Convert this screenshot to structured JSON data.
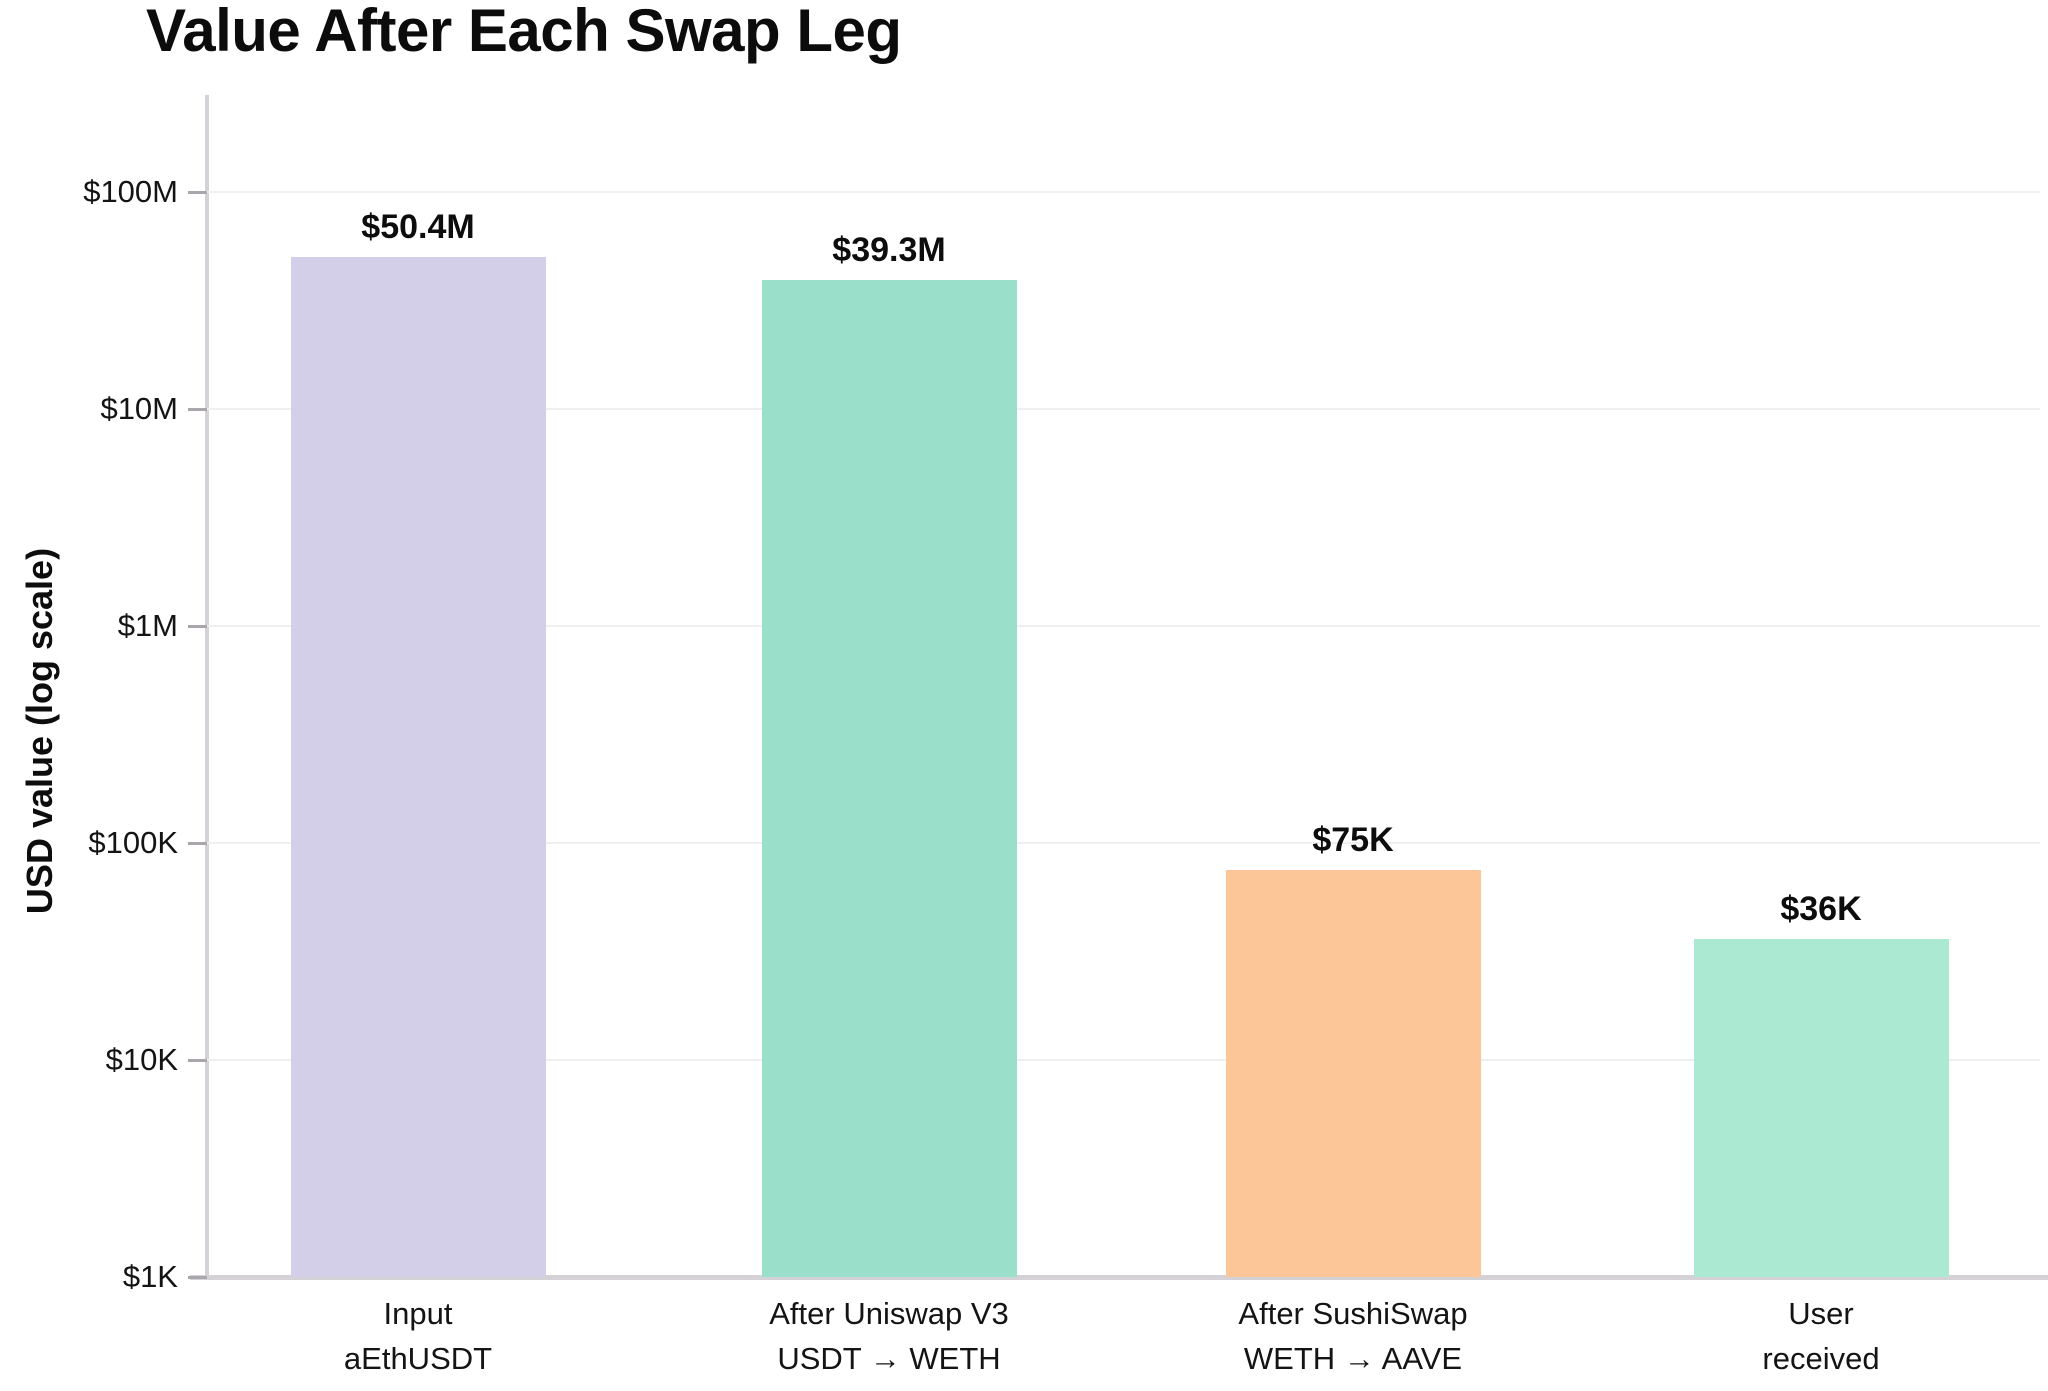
{
  "chart_data": {
    "type": "bar",
    "title": "Value After Each Swap Leg",
    "ylabel": "USD value (log scale)",
    "xlabel": "",
    "log_scale": true,
    "ylim": [
      1000,
      100000000
    ],
    "grid": "horizontal",
    "legend": "none",
    "categories": [
      [
        "Input",
        "aEthUSDT"
      ],
      [
        "After Uniswap V3",
        "USDT → WETH"
      ],
      [
        "After SushiSwap",
        "WETH → AAVE"
      ],
      [
        "User",
        "received"
      ]
    ],
    "values": [
      50400000,
      39300000,
      75000,
      36000
    ],
    "value_labels": [
      "$50.4M",
      "$39.3M",
      "$75K",
      "$36K"
    ],
    "bar_colors": [
      "#d3cfe9",
      "#99dfc9",
      "#fdc699",
      "#ace9d3"
    ],
    "yticks": [
      {
        "label": "$1K",
        "value": 1000
      },
      {
        "label": "$10K",
        "value": 10000
      },
      {
        "label": "$100K",
        "value": 100000
      },
      {
        "label": "$1M",
        "value": 1000000
      },
      {
        "label": "$10M",
        "value": 10000000
      },
      {
        "label": "$100M",
        "value": 100000000
      }
    ],
    "colors": {
      "axis": "#d4d2d6",
      "gridline": "#efeef0",
      "tick_mark": "#a9a7ab",
      "text": "#141414"
    }
  }
}
